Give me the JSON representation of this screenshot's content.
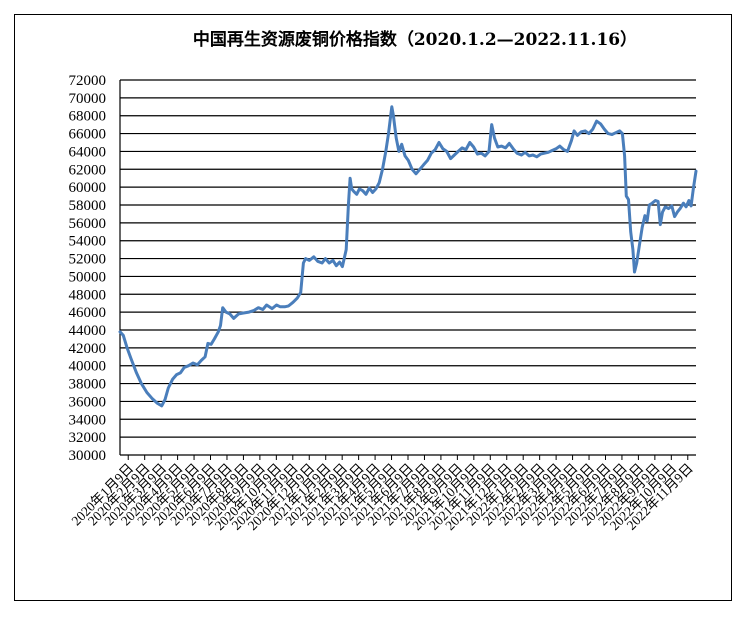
{
  "chart_data": {
    "type": "line",
    "title": "中国再生资源废铜价格指数（2020.1.2—2022.11.16）",
    "xlabel": "",
    "ylabel": "",
    "ylim": [
      30000,
      72000
    ],
    "yticks": [
      30000,
      32000,
      34000,
      36000,
      38000,
      40000,
      42000,
      44000,
      46000,
      48000,
      50000,
      52000,
      54000,
      56000,
      58000,
      60000,
      62000,
      64000,
      66000,
      68000,
      70000,
      72000
    ],
    "grid": true,
    "legend": "none",
    "line_color": "#4a7ebb",
    "grid_color": "#000000",
    "x_range": [
      "2020-01-02",
      "2022-11-16"
    ],
    "categories": [
      "2020年1月9日",
      "2020年2月9日",
      "2020年3月9日",
      "2020年4月9日",
      "2020年5月9日",
      "2020年6月9日",
      "2020年7月9日",
      "2020年8月9日",
      "2020年9月9日",
      "2020年10月9日",
      "2020年11月9日",
      "2020年12月9日",
      "2021年1月9日",
      "2021年2月9日",
      "2021年3月9日",
      "2021年4月9日",
      "2021年5月9日",
      "2021年6月9日",
      "2021年7月9日",
      "2021年8月9日",
      "2021年9月9日",
      "2021年10月9日",
      "2021年11月9日",
      "2021年12月9日",
      "2022年1月9日",
      "2022年2月9日",
      "2022年3月9日",
      "2022年4月9日",
      "2022年5月9日",
      "2022年6月9日",
      "2022年7月9日",
      "2022年8月9日",
      "2022年9月9日",
      "2022年10月9日",
      "2022年11月9日"
    ],
    "series": [
      {
        "values": [
          [
            "2020-01-02",
            43800
          ],
          [
            "2020-01-08",
            43400
          ],
          [
            "2020-01-15",
            42000
          ],
          [
            "2020-01-22",
            40800
          ],
          [
            "2020-02-01",
            39200
          ],
          [
            "2020-02-10",
            38000
          ],
          [
            "2020-02-20",
            37000
          ],
          [
            "2020-03-01",
            36300
          ],
          [
            "2020-03-10",
            35800
          ],
          [
            "2020-03-18",
            35500
          ],
          [
            "2020-03-24",
            36200
          ],
          [
            "2020-03-30",
            37500
          ],
          [
            "2020-04-07",
            38500
          ],
          [
            "2020-04-14",
            39000
          ],
          [
            "2020-04-21",
            39200
          ],
          [
            "2020-04-28",
            39800
          ],
          [
            "2020-05-06",
            40000
          ],
          [
            "2020-05-14",
            40300
          ],
          [
            "2020-05-22",
            40100
          ],
          [
            "2020-05-29",
            40600
          ],
          [
            "2020-06-05",
            41000
          ],
          [
            "2020-06-10",
            42500
          ],
          [
            "2020-06-16",
            42400
          ],
          [
            "2020-06-22",
            43000
          ],
          [
            "2020-06-29",
            43800
          ],
          [
            "2020-07-03",
            44500
          ],
          [
            "2020-07-07",
            46500
          ],
          [
            "2020-07-13",
            46000
          ],
          [
            "2020-07-20",
            45800
          ],
          [
            "2020-07-27",
            45300
          ],
          [
            "2020-08-05",
            45800
          ],
          [
            "2020-08-14",
            45900
          ],
          [
            "2020-08-24",
            46000
          ],
          [
            "2020-09-02",
            46200
          ],
          [
            "2020-09-10",
            46500
          ],
          [
            "2020-09-18",
            46300
          ],
          [
            "2020-09-25",
            46800
          ],
          [
            "2020-10-05",
            46400
          ],
          [
            "2020-10-13",
            46800
          ],
          [
            "2020-10-20",
            46600
          ],
          [
            "2020-10-28",
            46600
          ],
          [
            "2020-11-04",
            46700
          ],
          [
            "2020-11-12",
            47100
          ],
          [
            "2020-11-20",
            47600
          ],
          [
            "2020-11-26",
            48200
          ],
          [
            "2020-12-01",
            51500
          ],
          [
            "2020-12-05",
            52000
          ],
          [
            "2020-12-12",
            51800
          ],
          [
            "2020-12-20",
            52200
          ],
          [
            "2020-12-27",
            51700
          ],
          [
            "2021-01-04",
            51500
          ],
          [
            "2021-01-10",
            52000
          ],
          [
            "2021-01-17",
            51500
          ],
          [
            "2021-01-24",
            51800
          ],
          [
            "2021-01-30",
            51200
          ],
          [
            "2021-02-05",
            51600
          ],
          [
            "2021-02-10",
            51100
          ],
          [
            "2021-02-17",
            53000
          ],
          [
            "2021-02-21",
            58000
          ],
          [
            "2021-02-24",
            61000
          ],
          [
            "2021-02-27",
            59800
          ],
          [
            "2021-03-03",
            59500
          ],
          [
            "2021-03-08",
            59200
          ],
          [
            "2021-03-13",
            59800
          ],
          [
            "2021-03-19",
            59600
          ],
          [
            "2021-03-25",
            59200
          ],
          [
            "2021-03-31",
            59900
          ],
          [
            "2021-04-06",
            59400
          ],
          [
            "2021-04-12",
            59800
          ],
          [
            "2021-04-18",
            60500
          ],
          [
            "2021-04-24",
            62000
          ],
          [
            "2021-04-30",
            64000
          ],
          [
            "2021-05-05",
            66000
          ],
          [
            "2021-05-09",
            68000
          ],
          [
            "2021-05-11",
            69000
          ],
          [
            "2021-05-14",
            68000
          ],
          [
            "2021-05-19",
            65500
          ],
          [
            "2021-05-24",
            64000
          ],
          [
            "2021-05-29",
            64800
          ],
          [
            "2021-06-04",
            63500
          ],
          [
            "2021-06-10",
            63000
          ],
          [
            "2021-06-17",
            62000
          ],
          [
            "2021-06-24",
            61500
          ],
          [
            "2021-07-01",
            62000
          ],
          [
            "2021-07-08",
            62500
          ],
          [
            "2021-07-15",
            63000
          ],
          [
            "2021-07-22",
            63800
          ],
          [
            "2021-07-29",
            64200
          ],
          [
            "2021-08-05",
            65000
          ],
          [
            "2021-08-12",
            64300
          ],
          [
            "2021-08-19",
            64000
          ],
          [
            "2021-08-26",
            63200
          ],
          [
            "2021-09-02",
            63600
          ],
          [
            "2021-09-09",
            64000
          ],
          [
            "2021-09-16",
            64400
          ],
          [
            "2021-09-23",
            64200
          ],
          [
            "2021-09-30",
            65000
          ],
          [
            "2021-10-07",
            64500
          ],
          [
            "2021-10-14",
            63700
          ],
          [
            "2021-10-21",
            63800
          ],
          [
            "2021-10-28",
            63500
          ],
          [
            "2021-11-04",
            64000
          ],
          [
            "2021-11-09",
            67000
          ],
          [
            "2021-11-14",
            65500
          ],
          [
            "2021-11-20",
            64500
          ],
          [
            "2021-11-27",
            64600
          ],
          [
            "2021-12-04",
            64400
          ],
          [
            "2021-12-11",
            64900
          ],
          [
            "2021-12-18",
            64300
          ],
          [
            "2021-12-25",
            63800
          ],
          [
            "2022-01-02",
            63600
          ],
          [
            "2022-01-09",
            63900
          ],
          [
            "2022-01-16",
            63500
          ],
          [
            "2022-01-23",
            63600
          ],
          [
            "2022-01-30",
            63400
          ],
          [
            "2022-02-06",
            63700
          ],
          [
            "2022-02-13",
            63800
          ],
          [
            "2022-02-20",
            63900
          ],
          [
            "2022-02-27",
            64100
          ],
          [
            "2022-03-06",
            64300
          ],
          [
            "2022-03-13",
            64600
          ],
          [
            "2022-03-20",
            64200
          ],
          [
            "2022-03-27",
            64000
          ],
          [
            "2022-04-03",
            65200
          ],
          [
            "2022-04-08",
            66300
          ],
          [
            "2022-04-14",
            65800
          ],
          [
            "2022-04-21",
            66200
          ],
          [
            "2022-04-28",
            66300
          ],
          [
            "2022-05-05",
            66000
          ],
          [
            "2022-05-12",
            66500
          ],
          [
            "2022-05-19",
            67400
          ],
          [
            "2022-05-26",
            67100
          ],
          [
            "2022-06-02",
            66500
          ],
          [
            "2022-06-09",
            66000
          ],
          [
            "2022-06-16",
            65900
          ],
          [
            "2022-06-23",
            66100
          ],
          [
            "2022-06-30",
            66300
          ],
          [
            "2022-07-05",
            66000
          ],
          [
            "2022-07-09",
            63500
          ],
          [
            "2022-07-12",
            59000
          ],
          [
            "2022-07-16",
            58600
          ],
          [
            "2022-07-20",
            55000
          ],
          [
            "2022-07-24",
            53000
          ],
          [
            "2022-07-27",
            50500
          ],
          [
            "2022-07-31",
            51500
          ],
          [
            "2022-08-05",
            53500
          ],
          [
            "2022-08-10",
            55500
          ],
          [
            "2022-08-15",
            56800
          ],
          [
            "2022-08-19",
            56200
          ],
          [
            "2022-08-23",
            58000
          ],
          [
            "2022-08-28",
            58200
          ],
          [
            "2022-09-03",
            58500
          ],
          [
            "2022-09-08",
            58400
          ],
          [
            "2022-09-12",
            55800
          ],
          [
            "2022-09-16",
            57200
          ],
          [
            "2022-09-21",
            57800
          ],
          [
            "2022-09-27",
            57600
          ],
          [
            "2022-10-03",
            57900
          ],
          [
            "2022-10-08",
            56700
          ],
          [
            "2022-10-13",
            57200
          ],
          [
            "2022-10-18",
            57600
          ],
          [
            "2022-10-24",
            58200
          ],
          [
            "2022-10-29",
            57800
          ],
          [
            "2022-11-03",
            58500
          ],
          [
            "2022-11-07",
            57900
          ],
          [
            "2022-11-11",
            59800
          ],
          [
            "2022-11-16",
            61800
          ]
        ]
      }
    ]
  }
}
